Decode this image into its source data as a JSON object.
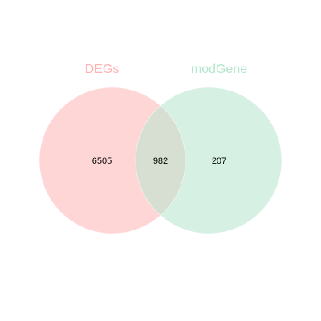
{
  "venn": {
    "sets": [
      {
        "name": "DEGs",
        "color": "#ffb3b3",
        "fill": "#ffd6d6"
      },
      {
        "name": "modGene",
        "color": "#b3e6cc",
        "fill": "#d6f0e3"
      }
    ],
    "intersection_fill": "#d6dfd2",
    "regions": {
      "only_a": "6505",
      "both": "982",
      "only_b": "207"
    }
  }
}
